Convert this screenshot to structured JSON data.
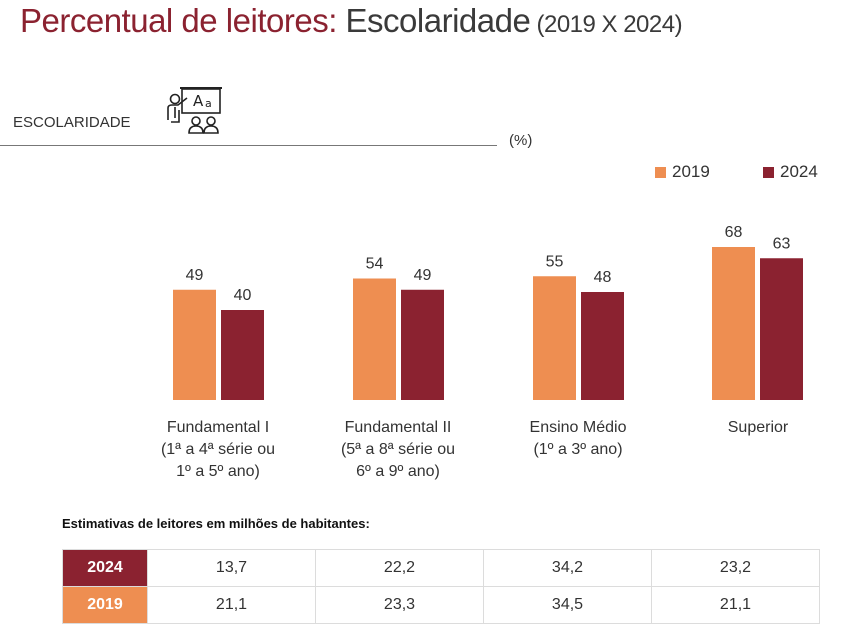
{
  "title": {
    "part1": "Percentual de leitores:",
    "part2": " Escolaridade",
    "part3": " (2019 X 2024)"
  },
  "section_label": "ESCOLARIDADE",
  "section_icon": "teacher-classroom-icon",
  "unit_label": "(%)",
  "colors": {
    "2019": "#EE8E51",
    "2024": "#8B2230"
  },
  "chart_data": {
    "type": "bar",
    "title": "Percentual de leitores: Escolaridade (2019 X 2024)",
    "xlabel": "",
    "ylabel": "(%)",
    "categories": [
      "Fundamental I\n(1ª a 4ª série ou\n1º a 5º ano)",
      "Fundamental II\n(5ª a 8ª série ou\n6º a 9º ano)",
      "Ensino Médio\n(1º a 3º ano)",
      "Superior"
    ],
    "series": [
      {
        "name": "2019",
        "values": [
          49,
          54,
          55,
          68
        ]
      },
      {
        "name": "2024",
        "values": [
          40,
          49,
          48,
          63
        ]
      }
    ],
    "ylim": [
      0,
      70
    ],
    "grid": false,
    "legend": "top-right"
  },
  "table": {
    "title": "Estimativas de leitores em milhões de habitantes:",
    "rows": [
      {
        "year": "2024",
        "values": [
          "13,7",
          "22,2",
          "34,2",
          "23,2"
        ]
      },
      {
        "year": "2019",
        "values": [
          "21,1",
          "23,3",
          "34,5",
          "21,1"
        ]
      }
    ]
  }
}
